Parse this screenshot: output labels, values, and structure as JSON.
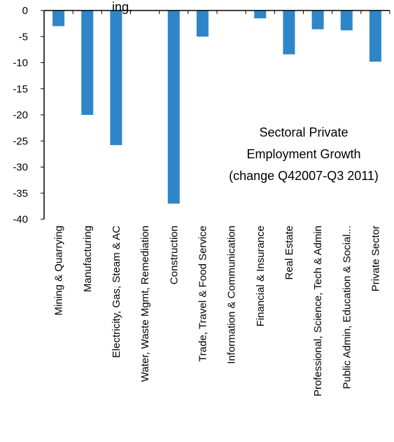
{
  "top_text_fragment": "ing,",
  "chart_data": {
    "type": "bar",
    "categories": [
      "Mining & Quarrying",
      "Manufacturing",
      "Electricity, Gas, Steam & AC",
      "Water, Waste Mgmt, Remediation",
      "Construction",
      "Trade, Travel & Food Service",
      "Information & Communication",
      "Financial & Insurance",
      "Real Estate",
      "Professional, Science, Tech & Admin",
      "Public Admin, Education & Social...",
      "Private Sector"
    ],
    "values": [
      -3.0,
      -20.0,
      -25.8,
      0.0,
      -37.0,
      -5.0,
      0.0,
      -1.5,
      -8.4,
      -3.6,
      -3.8,
      -9.8
    ],
    "ylim": [
      -40,
      0
    ],
    "yticks": [
      0,
      -5,
      -10,
      -15,
      -20,
      -25,
      -30,
      -35,
      -40
    ],
    "annotation": [
      "Sectoral Private",
      "Employment Growth",
      "(change Q42007-Q3 2011)"
    ],
    "bar_color": "#2E86C8",
    "grid": false,
    "legend": "none"
  }
}
